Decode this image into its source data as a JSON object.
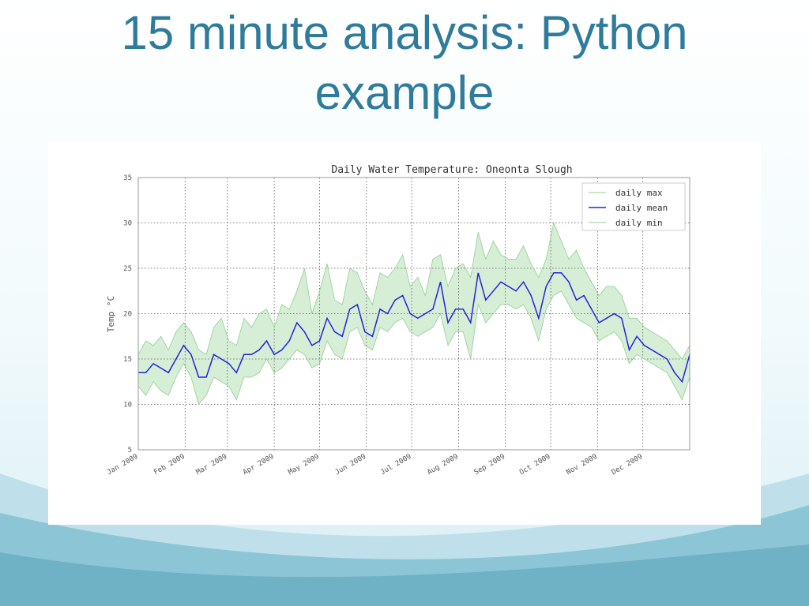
{
  "slide": {
    "title": "15 minute analysis: Python example"
  },
  "chart_data": {
    "type": "line",
    "title": "Daily Water Temperature: Oneonta Slough",
    "ylabel": "Temp °C",
    "x": [
      0,
      5,
      10,
      15,
      20,
      25,
      30,
      35,
      40,
      45,
      50,
      55,
      60,
      65,
      70,
      75,
      80,
      85,
      90,
      95,
      100,
      105,
      110,
      115,
      120,
      125,
      130,
      135,
      140,
      145,
      150,
      155,
      160,
      165,
      170,
      175,
      180,
      185,
      190,
      195,
      200,
      205,
      210,
      215,
      220,
      225,
      230,
      235,
      240,
      245,
      250,
      255,
      260,
      265,
      270,
      275,
      280,
      285,
      290,
      295,
      300,
      305,
      310,
      315,
      320,
      325,
      330,
      335,
      340,
      345,
      350,
      355,
      360,
      365
    ],
    "series": [
      {
        "name": "daily max",
        "color": "#8fcf8f",
        "values": [
          15.5,
          17,
          16.5,
          17.5,
          16,
          18,
          19,
          18,
          16,
          15.5,
          18.5,
          19.5,
          17,
          16.5,
          19.5,
          18.5,
          20,
          20.5,
          18.5,
          21,
          20.5,
          22.5,
          25,
          20,
          22.5,
          25.5,
          21.5,
          21,
          25,
          24.5,
          22.5,
          21,
          24.5,
          24,
          25,
          26.5,
          23,
          24,
          22,
          26,
          26.5,
          23,
          25,
          25.5,
          24,
          29,
          26,
          28,
          26.5,
          26,
          26,
          27.5,
          25.5,
          24,
          26,
          30,
          28,
          26,
          27,
          25,
          23.5,
          22,
          23,
          23,
          22,
          19.5,
          19.5,
          18.5,
          18,
          17.5,
          17,
          16,
          15,
          16.5
        ]
      },
      {
        "name": "daily mean",
        "color": "#2323d8",
        "values": [
          13.5,
          13.5,
          14.5,
          14,
          13.5,
          15,
          16.5,
          15.5,
          13,
          13,
          15.5,
          15,
          14.5,
          13.5,
          15.5,
          15.5,
          16,
          17,
          15.5,
          16,
          17,
          19,
          18,
          16.5,
          17,
          19.5,
          18,
          17.5,
          20.5,
          21,
          18,
          17.5,
          20.5,
          20,
          21.5,
          22,
          20,
          19.5,
          20,
          20.5,
          23.5,
          19,
          20.5,
          20.5,
          19,
          24.5,
          21.5,
          22.5,
          23.5,
          23,
          22.5,
          23.5,
          22,
          19.5,
          23,
          24.5,
          24.5,
          23.5,
          21.5,
          22,
          20.5,
          19,
          19.5,
          20,
          19.5,
          16,
          17.5,
          16.5,
          16,
          15.5,
          15,
          13.5,
          12.5,
          15.5
        ]
      },
      {
        "name": "daily min",
        "color": "#8fcf8f",
        "values": [
          12,
          11,
          12.5,
          11.5,
          11,
          13,
          14.5,
          13,
          10,
          11,
          13,
          12.5,
          12,
          10.5,
          13,
          13,
          13.5,
          15,
          13.5,
          14,
          15,
          16,
          15.5,
          14,
          14.5,
          17,
          15.5,
          15,
          18,
          18.5,
          16.5,
          16,
          18.5,
          18,
          19,
          19.5,
          18,
          17.5,
          18,
          18.5,
          20,
          16.5,
          18,
          18,
          15,
          21,
          19,
          20,
          21,
          21,
          20.5,
          21,
          19.5,
          17,
          20.5,
          22,
          22.5,
          21,
          19.5,
          19,
          18.5,
          17,
          17.5,
          18,
          17,
          14.5,
          15.5,
          15,
          14.5,
          14,
          13.5,
          12,
          10.5,
          13
        ]
      }
    ],
    "fill_between": true,
    "fill_color": "#d6eed6",
    "xlim": [
      0,
      365
    ],
    "xticks": [
      {
        "value": 0,
        "label": "Jan 2009"
      },
      {
        "value": 31,
        "label": "Feb 2009"
      },
      {
        "value": 59,
        "label": "Mar 2009"
      },
      {
        "value": 90,
        "label": "Apr 2009"
      },
      {
        "value": 120,
        "label": "May 2009"
      },
      {
        "value": 151,
        "label": "Jun 2009"
      },
      {
        "value": 181,
        "label": "Jul 2009"
      },
      {
        "value": 212,
        "label": "Aug 2009"
      },
      {
        "value": 243,
        "label": "Sep 2009"
      },
      {
        "value": 273,
        "label": "Oct 2009"
      },
      {
        "value": 304,
        "label": "Nov 2009"
      },
      {
        "value": 334,
        "label": "Dec 2009"
      }
    ],
    "ylim": [
      5,
      35
    ],
    "yticks": [
      5,
      10,
      15,
      20,
      25,
      30,
      35
    ],
    "grid": true,
    "legend": "upper right"
  }
}
